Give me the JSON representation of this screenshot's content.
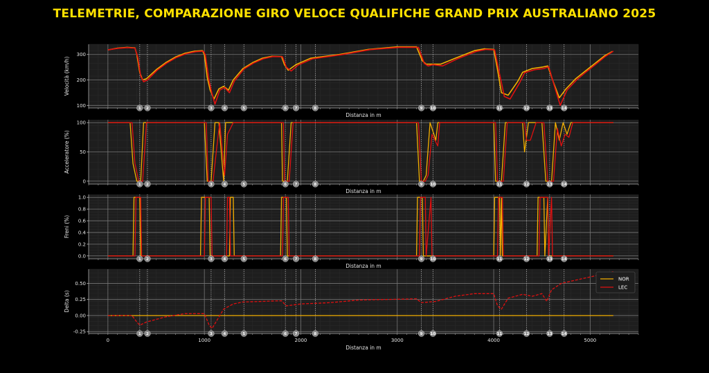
{
  "title": "TELEMETRIE, COMPARAZIONE GIRO VELOCE QUALIFICHE GRAND PRIX AUSTRALIANO 2025",
  "colors": {
    "NOR": "#f5b000",
    "LEC": "#e01010",
    "background": "#000000",
    "panel": "#1e1e1e"
  },
  "chart_data": [
    {
      "type": "line",
      "ylabel": "Velocità (km/h)",
      "xlabel": "Distanza in m",
      "xlim": [
        -200,
        5500
      ],
      "ylim": [
        90,
        340
      ],
      "yticks": [
        100,
        200,
        300
      ],
      "xticks": [],
      "corners": [
        "1",
        "2",
        "3",
        "4",
        "5",
        "6",
        "7",
        "8",
        "9",
        "10",
        "11",
        "12",
        "13",
        "14"
      ],
      "series": [
        {
          "name": "NOR",
          "x": [
            0,
            100,
            200,
            280,
            300,
            330,
            360,
            400,
            500,
            600,
            700,
            800,
            900,
            980,
            1000,
            1030,
            1060,
            1100,
            1150,
            1200,
            1250,
            1300,
            1400,
            1500,
            1600,
            1700,
            1800,
            1830,
            1870,
            1950,
            2100,
            2400,
            2700,
            3000,
            3200,
            3260,
            3300,
            3350,
            3450,
            3600,
            3800,
            3900,
            4000,
            4040,
            4080,
            4150,
            4250,
            4300,
            4400,
            4500,
            4560,
            4620,
            4680,
            4750,
            4850,
            4950,
            5050,
            5150,
            5230
          ],
          "values": [
            318,
            325,
            328,
            326,
            300,
            230,
            200,
            205,
            240,
            268,
            290,
            305,
            313,
            315,
            300,
            210,
            160,
            125,
            165,
            175,
            160,
            200,
            245,
            268,
            285,
            293,
            292,
            260,
            238,
            260,
            285,
            300,
            320,
            330,
            330,
            275,
            262,
            262,
            262,
            285,
            315,
            322,
            320,
            240,
            150,
            140,
            195,
            230,
            245,
            250,
            255,
            190,
            130,
            165,
            205,
            235,
            265,
            295,
            312
          ]
        },
        {
          "name": "LEC",
          "x": [
            0,
            100,
            200,
            280,
            310,
            340,
            370,
            410,
            510,
            610,
            710,
            810,
            910,
            990,
            1010,
            1050,
            1080,
            1110,
            1160,
            1210,
            1260,
            1310,
            1410,
            1510,
            1610,
            1710,
            1810,
            1850,
            1900,
            1970,
            2120,
            2420,
            2720,
            3020,
            3220,
            3280,
            3320,
            3370,
            3470,
            3620,
            3820,
            3920,
            4010,
            4060,
            4110,
            4170,
            4270,
            4320,
            4420,
            4520,
            4570,
            4630,
            4690,
            4760,
            4860,
            4960,
            5060,
            5160,
            5240
          ],
          "values": [
            318,
            324,
            327,
            325,
            290,
            215,
            193,
            200,
            238,
            266,
            288,
            303,
            311,
            313,
            298,
            195,
            145,
            105,
            160,
            170,
            150,
            195,
            243,
            266,
            283,
            292,
            291,
            250,
            235,
            258,
            283,
            299,
            319,
            328,
            328,
            265,
            255,
            260,
            255,
            282,
            312,
            320,
            318,
            225,
            135,
            125,
            190,
            228,
            240,
            245,
            252,
            175,
            100,
            160,
            200,
            232,
            262,
            293,
            313
          ]
        }
      ]
    },
    {
      "type": "line",
      "ylabel": "Acceleratore (%)",
      "xlabel": "Distanza in m",
      "xlim": [
        -200,
        5500
      ],
      "ylim": [
        -5,
        105
      ],
      "yticks": [
        0,
        50,
        100
      ],
      "xticks": [],
      "corners": [
        "1",
        "2",
        "3",
        "4",
        "5",
        "6",
        "7",
        "8",
        "9",
        "10",
        "11",
        "12",
        "13",
        "14"
      ],
      "series": [
        {
          "name": "NOR",
          "x": [
            0,
            230,
            260,
            300,
            340,
            370,
            1000,
            1030,
            1070,
            1110,
            1150,
            1200,
            1220,
            1280,
            1300,
            1800,
            1810,
            1860,
            1900,
            3200,
            3230,
            3270,
            3300,
            3340,
            3400,
            3420,
            4000,
            4020,
            4080,
            4120,
            4150,
            4300,
            4320,
            4360,
            4420,
            4450,
            4500,
            4540,
            4600,
            4640,
            4680,
            4720,
            4760,
            4800,
            5240
          ],
          "values": [
            100,
            100,
            30,
            0,
            0,
            100,
            100,
            0,
            0,
            100,
            100,
            0,
            100,
            100,
            100,
            100,
            0,
            0,
            100,
            100,
            0,
            0,
            10,
            100,
            70,
            100,
            100,
            0,
            0,
            100,
            100,
            100,
            50,
            100,
            100,
            100,
            100,
            0,
            0,
            100,
            70,
            100,
            80,
            100,
            100
          ]
        },
        {
          "name": "LEC",
          "x": [
            0,
            250,
            280,
            320,
            360,
            400,
            1020,
            1040,
            1090,
            1130,
            1160,
            1210,
            1240,
            1300,
            1320,
            1820,
            1830,
            1880,
            1920,
            3220,
            3250,
            3290,
            3320,
            3360,
            3420,
            3440,
            4020,
            4040,
            4100,
            4140,
            4170,
            4320,
            4340,
            4380,
            4440,
            4470,
            4520,
            4560,
            4620,
            4660,
            4700,
            4740,
            4780,
            4820,
            5240
          ],
          "values": [
            100,
            100,
            30,
            0,
            0,
            100,
            100,
            0,
            0,
            60,
            100,
            10,
            80,
            100,
            100,
            100,
            0,
            0,
            100,
            100,
            0,
            0,
            10,
            80,
            60,
            100,
            100,
            0,
            0,
            100,
            100,
            100,
            70,
            70,
            100,
            100,
            100,
            0,
            0,
            90,
            60,
            80,
            75,
            100,
            100
          ]
        }
      ]
    },
    {
      "type": "line",
      "ylabel": "Freni (%)",
      "xlabel": "Distanza in m",
      "xlim": [
        -200,
        5500
      ],
      "ylim": [
        -0.05,
        1.05
      ],
      "yticks": [
        0.0,
        0.2,
        0.4,
        0.6,
        0.8,
        1.0
      ],
      "xticks": [],
      "corners": [
        "1",
        "2",
        "3",
        "4",
        "5",
        "6",
        "7",
        "8",
        "9",
        "10",
        "11",
        "12",
        "13",
        "14"
      ],
      "series": [
        {
          "name": "NOR",
          "x": [
            0,
            260,
            270,
            330,
            340,
            960,
            970,
            1050,
            1060,
            1260,
            1270,
            1300,
            1310,
            1790,
            1800,
            1850,
            1860,
            3200,
            3210,
            3260,
            3270,
            4000,
            4010,
            4060,
            4070,
            4080,
            4090,
            4450,
            4460,
            4520,
            4530,
            4560,
            4570,
            5240
          ],
          "values": [
            0,
            0,
            1,
            1,
            0,
            0,
            1,
            1,
            0,
            0,
            1,
            1,
            0,
            0,
            1,
            1,
            0,
            0,
            1,
            1,
            0,
            0,
            1,
            1,
            0,
            1,
            0,
            0,
            1,
            1,
            0,
            1,
            0,
            0
          ]
        },
        {
          "name": "LEC",
          "x": [
            0,
            280,
            290,
            340,
            350,
            1000,
            1010,
            1070,
            1080,
            1230,
            1240,
            1260,
            1270,
            1810,
            1820,
            1870,
            1880,
            3230,
            3240,
            3290,
            3300,
            3350,
            3360,
            4040,
            4050,
            4090,
            4100,
            4470,
            4480,
            4560,
            4570,
            4600,
            4610,
            5240
          ],
          "values": [
            0,
            0,
            1,
            1,
            0,
            0,
            1,
            1,
            0,
            0,
            1,
            1,
            0,
            0,
            1,
            1,
            0,
            0,
            1,
            1,
            0,
            1,
            0,
            0,
            1,
            1,
            0,
            0,
            1,
            1,
            0,
            1,
            0,
            0
          ]
        }
      ]
    },
    {
      "type": "line",
      "ylabel": "Delta (s)",
      "xlabel": "Distanza in m",
      "xlim": [
        -200,
        5500
      ],
      "ylim": [
        -0.28,
        0.72
      ],
      "yticks": [
        -0.25,
        0.0,
        0.25,
        0.5
      ],
      "xticks": [
        0,
        1000,
        2000,
        3000,
        4000,
        5000
      ],
      "corners": [
        "1",
        "2",
        "3",
        "4",
        "5",
        "6",
        "7",
        "8",
        "9",
        "10",
        "11",
        "12",
        "13",
        "14"
      ],
      "legend": "top-right",
      "series": [
        {
          "name": "NOR",
          "x": [
            0,
            5240
          ],
          "values": [
            0,
            0
          ]
        },
        {
          "name": "LEC",
          "x": [
            0,
            250,
            300,
            330,
            400,
            600,
            800,
            1000,
            1050,
            1080,
            1120,
            1200,
            1300,
            1400,
            1600,
            1800,
            1850,
            2000,
            2300,
            2600,
            2900,
            3200,
            3250,
            3400,
            3600,
            3800,
            4000,
            4040,
            4080,
            4150,
            4300,
            4400,
            4500,
            4550,
            4600,
            4700,
            4850,
            5000,
            5240
          ],
          "values": [
            0,
            0,
            -0.1,
            -0.15,
            -0.1,
            -0.02,
            0.03,
            0.03,
            -0.15,
            -0.2,
            -0.1,
            0.1,
            0.18,
            0.21,
            0.22,
            0.23,
            0.15,
            0.18,
            0.2,
            0.24,
            0.25,
            0.26,
            0.2,
            0.22,
            0.3,
            0.34,
            0.34,
            0.15,
            0.1,
            0.27,
            0.33,
            0.3,
            0.34,
            0.22,
            0.4,
            0.5,
            0.55,
            0.6,
            0.68
          ]
        }
      ]
    }
  ]
}
